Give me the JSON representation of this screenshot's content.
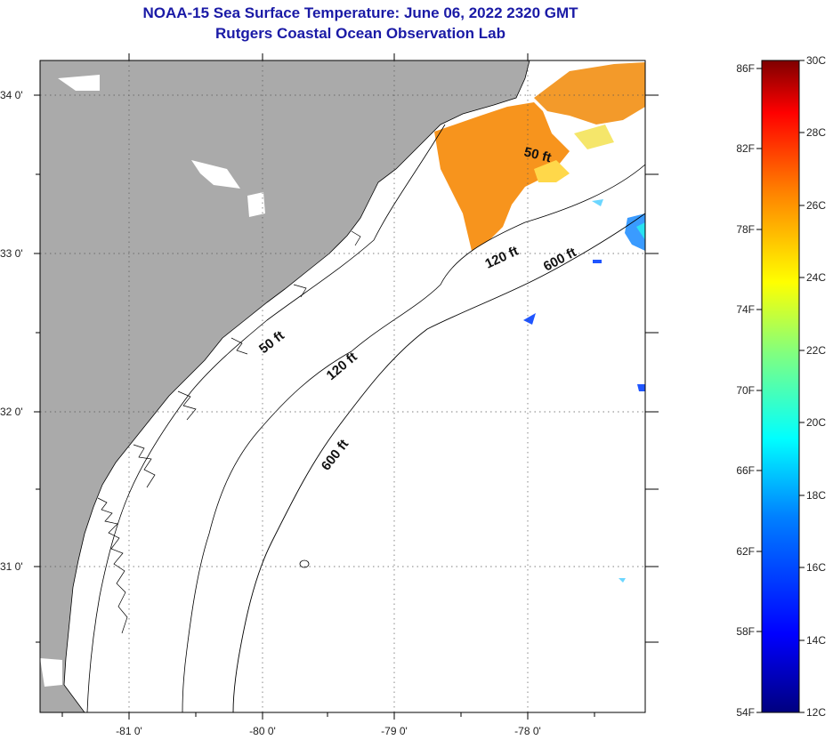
{
  "title": "NOAA-15 Sea Surface Temperature:  June 06, 2022 2320 GMT",
  "subtitle": "Rutgers Coastal Ocean Observation Lab",
  "axes": {
    "lat_labels": [
      "34 0'",
      "33 0'",
      "32 0'",
      "31 0'"
    ],
    "lon_labels": [
      "-81 0'",
      "-80 0'",
      "-79 0'",
      "-78 0'"
    ]
  },
  "contours": {
    "c50_a": "50 ft",
    "c120_a": "120 ft",
    "c600_a": "600 ft",
    "c50_b": "50 ft",
    "c120_b": "120 ft",
    "c600_b": "600 ft"
  },
  "colorbar": {
    "fahrenheit": [
      "86F",
      "82F",
      "78F",
      "74F",
      "70F",
      "66F",
      "62F",
      "58F",
      "54F"
    ],
    "celsius": [
      "30C",
      "28C",
      "26C",
      "24C",
      "22C",
      "20C",
      "18C",
      "16C",
      "14C",
      "12C"
    ]
  },
  "colors": {
    "land": "#aaaaaa",
    "water": "#ffffff",
    "sst_warm": "#f7941d",
    "title": "#1a1aa6"
  }
}
